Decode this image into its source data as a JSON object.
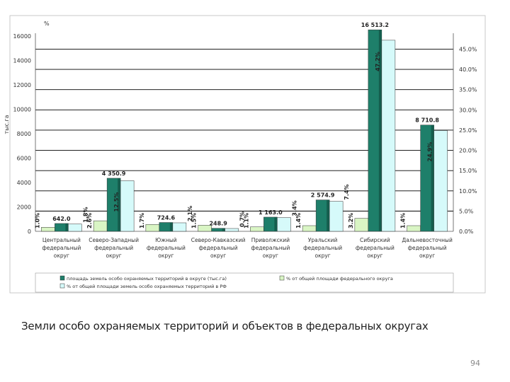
{
  "slide": {
    "caption": "Земли особо охраняемых территорий и объектов в федеральных округах",
    "page_number": "94"
  },
  "colors": {
    "area_bar": "#1e7f6a",
    "area_bar_dark": "#155e4e",
    "region_share_bar": "#d9f5c4",
    "country_share_bar": "#d6fafa",
    "bar_outline": "#333333",
    "right_grid": "#000000",
    "axis_text": "#333333"
  },
  "chart_data": {
    "type": "bar",
    "title": "",
    "left_axis_unit": "тыс.га",
    "right_axis_unit": "%",
    "ylim_left": [
      0,
      16000
    ],
    "left_ticks": [
      0,
      2000,
      4000,
      6000,
      8000,
      10000,
      12000,
      14000,
      16000
    ],
    "left_tick_labels": [
      "0",
      "2000",
      "4000",
      "6000",
      "8000",
      "10000",
      "12000",
      "14000",
      "16000"
    ],
    "ylim_right": [
      0,
      48.75
    ],
    "right_ticks": [
      0,
      5,
      10,
      15,
      20,
      25,
      30,
      35,
      40,
      45
    ],
    "right_tick_labels": [
      "0.0%",
      "5.0%",
      "10.0%",
      "15.0%",
      "20.0%",
      "25.0%",
      "30.0%",
      "35.0%",
      "40.0%",
      "45.0%"
    ],
    "right_axis_gridlines": true,
    "categories": [
      "Центральный федеральный округ",
      "Северо-Западный федеральный округ",
      "Южный федеральный округ",
      "Северо-Кавказский федеральный округ",
      "Приволжский федеральный округ",
      "Уральский федеральный округ",
      "Сибирский федеральный округ",
      "Дальневосточный федеральный округ"
    ],
    "series": [
      {
        "name": "площадь земель особо охраняемых территорий в округе (тыс.га)",
        "axis": "left",
        "values": [
          642.0,
          4350.9,
          724.6,
          248.9,
          1163.0,
          2574.9,
          16513.2,
          8710.8
        ],
        "labels": [
          "642.0",
          "4 350.9",
          "724.6",
          "248.9",
          "1 163.0",
          "2 574.9",
          "16 513.2",
          "8 710.8"
        ]
      },
      {
        "name": "% от общей площади федерального округа",
        "axis": "right",
        "values": [
          1.0,
          2.6,
          1.7,
          1.5,
          1.1,
          1.4,
          3.2,
          1.4
        ],
        "labels": [
          "1.0%",
          "2.6%",
          "1.7%",
          "1.5%",
          "1.1%",
          "1.4%",
          "3.2%",
          "1.4%"
        ]
      },
      {
        "name": "% от общей площади земель особо охраняемых территорий в РФ",
        "axis": "right",
        "values": [
          1.8,
          12.5,
          2.1,
          0.7,
          3.4,
          7.4,
          47.2,
          24.9
        ],
        "labels": [
          "1.8%",
          "12.5%",
          "2.1%",
          "0.7%",
          "3.4%",
          "7.4%",
          "47.2%",
          "24.9%"
        ]
      }
    ],
    "legend_position": "bottom"
  }
}
